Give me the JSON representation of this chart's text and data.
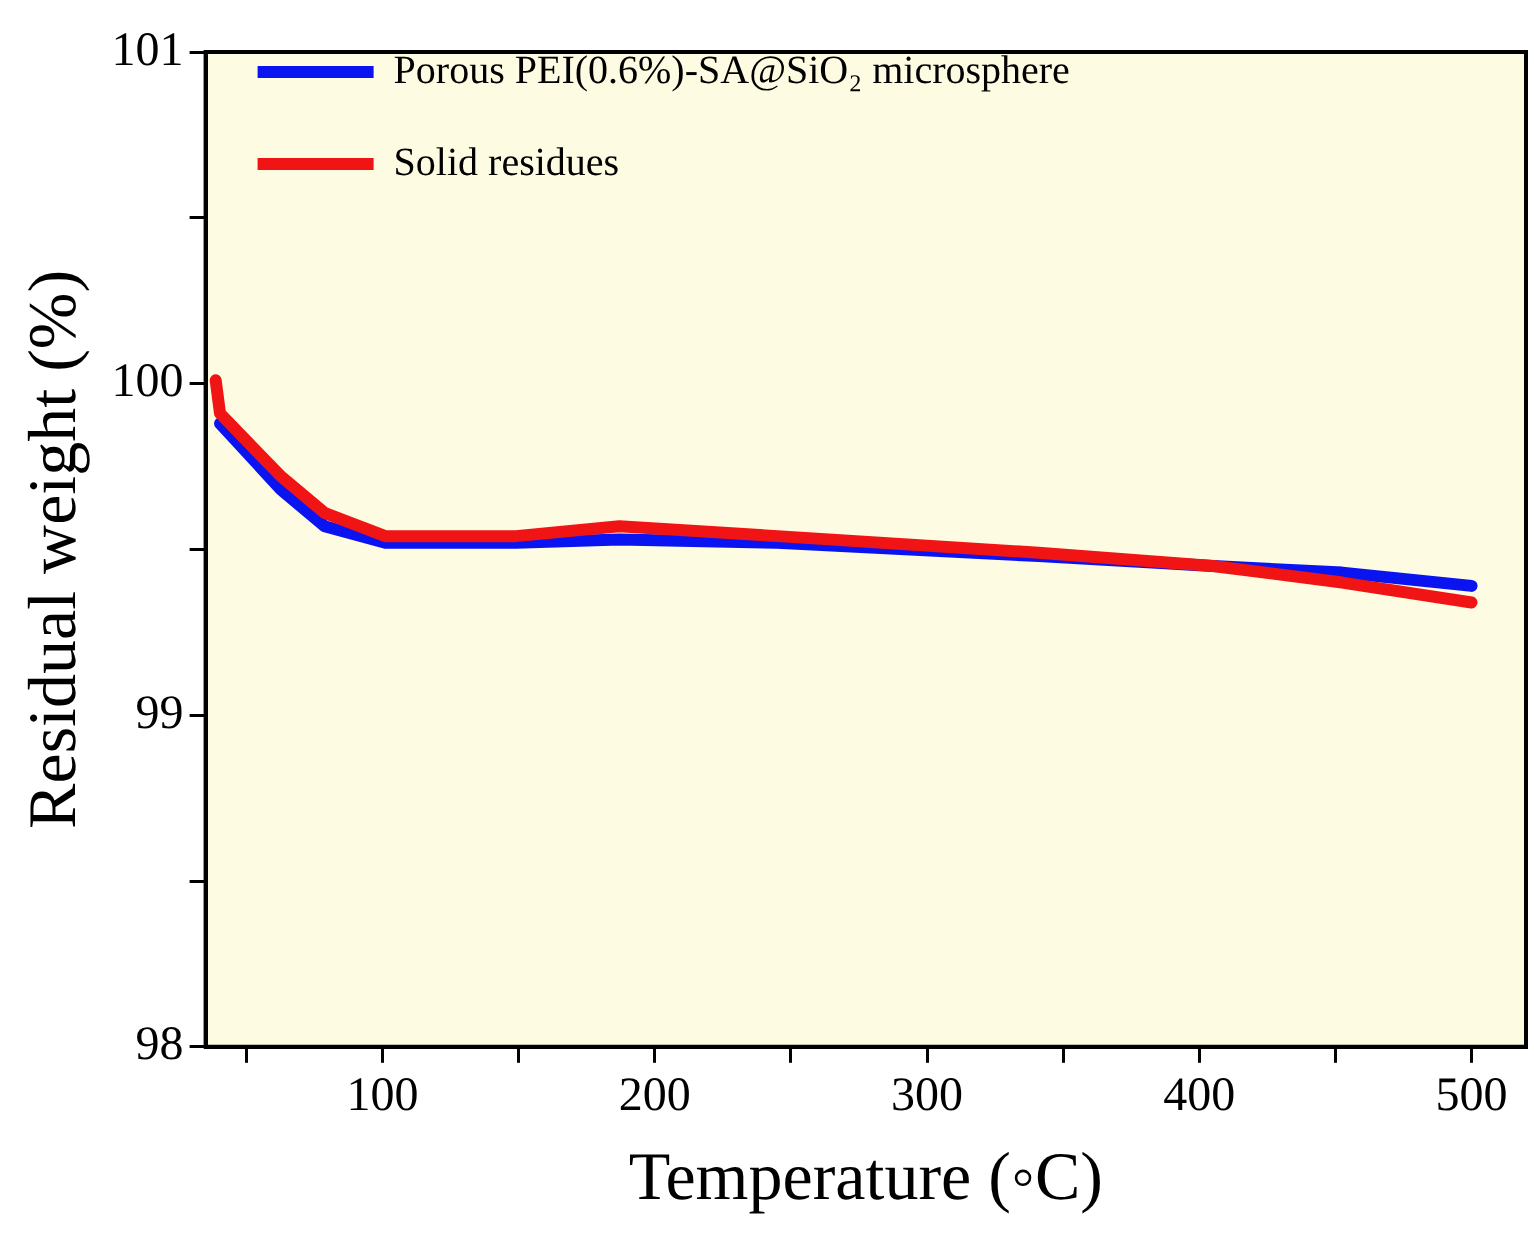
{
  "chart_data": {
    "type": "line",
    "xlabel": "Temperature (◦C)",
    "ylabel": "Residual weight (%)",
    "xlim": [
      35,
      520
    ],
    "ylim": [
      98,
      101
    ],
    "xticks": [
      {
        "value": 50,
        "label": null
      },
      100,
      {
        "value": 150,
        "label": null
      },
      200,
      {
        "value": 250,
        "label": null
      },
      300,
      {
        "value": 350,
        "label": null
      },
      400,
      {
        "value": 450,
        "label": null
      },
      500
    ],
    "yticks": [
      98,
      {
        "value": 98.5,
        "label": null
      },
      99,
      {
        "value": 99.5,
        "label": null
      },
      100,
      {
        "value": 100.5,
        "label": null
      },
      101
    ],
    "grid": false,
    "legend": "top left",
    "marker": "none",
    "line_style": "solid",
    "series": [
      {
        "name": "Porous PEI(0.6%)-SA@SiO₂ microsphere",
        "color": "#0a14f0",
        "x": [
          40.3,
          62.7,
          78.7,
          101,
          116,
          149,
          187,
          245,
          341,
          405,
          452.5,
          500
        ],
        "values": [
          99.88,
          99.68,
          99.57,
          99.52,
          99.52,
          99.52,
          99.53,
          99.52,
          99.48,
          99.45,
          99.43,
          99.39
        ]
      },
      {
        "name": "Solid residues",
        "color": "#f01414",
        "x": [
          38.7,
          40.3,
          62.7,
          78.7,
          101,
          149,
          187,
          245,
          341,
          405,
          452.5,
          500
        ],
        "values": [
          100.01,
          99.91,
          99.72,
          99.61,
          99.54,
          99.54,
          99.57,
          99.54,
          99.49,
          99.45,
          99.4,
          99.34
        ]
      }
    ]
  }
}
